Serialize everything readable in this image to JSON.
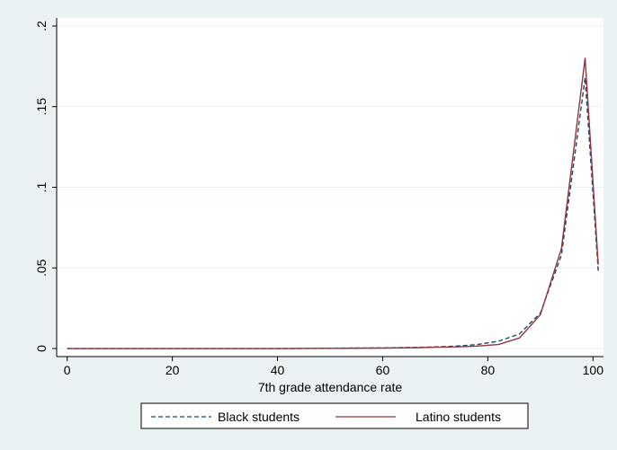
{
  "chart_data": {
    "type": "line",
    "xlabel": "7th grade attendance rate",
    "ylabel": "",
    "xlim": [
      -2,
      102
    ],
    "ylim": [
      -0.005,
      0.205
    ],
    "x_ticks": [
      0,
      20,
      40,
      60,
      80,
      100
    ],
    "x_tick_labels": [
      "0",
      "20",
      "40",
      "60",
      "80",
      "100"
    ],
    "y_ticks": [
      0,
      0.05,
      0.1,
      0.15,
      0.2
    ],
    "y_tick_labels": [
      "0",
      ".05",
      ".1",
      ".15",
      ".2"
    ],
    "grid": true,
    "legend_position": "bottom",
    "series": [
      {
        "name": "Black students",
        "color": "#1a476f",
        "style": "dashed",
        "x": [
          0,
          10,
          20,
          30,
          40,
          50,
          60,
          66,
          70,
          74,
          78,
          82,
          86,
          90,
          94,
          98.5,
          101
        ],
        "y": [
          0,
          0,
          0,
          0,
          0,
          0.0002,
          0.0004,
          0.0007,
          0.001,
          0.0015,
          0.0025,
          0.0045,
          0.009,
          0.022,
          0.058,
          0.168,
          0.048
        ]
      },
      {
        "name": "Latino students",
        "color": "#90353b",
        "style": "solid",
        "x": [
          0,
          10,
          20,
          30,
          40,
          50,
          60,
          66,
          70,
          74,
          78,
          82,
          86,
          90,
          94,
          98.5,
          101
        ],
        "y": [
          0,
          0,
          0,
          0,
          0,
          0.0001,
          0.0003,
          0.0005,
          0.0008,
          0.001,
          0.0015,
          0.0025,
          0.0065,
          0.021,
          0.062,
          0.18,
          0.052
        ]
      }
    ]
  }
}
